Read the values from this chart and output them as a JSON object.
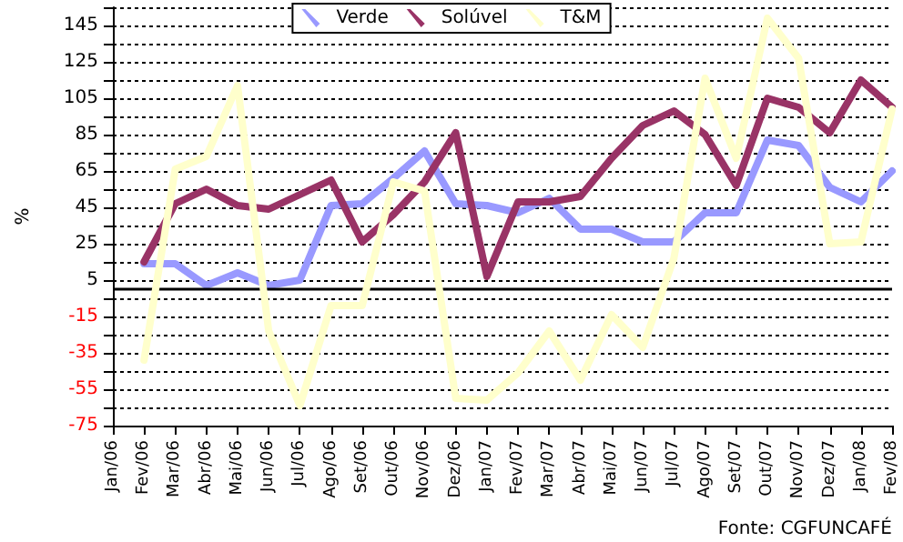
{
  "chart_data": {
    "type": "line",
    "ylabel": "%",
    "annotations": [
      "Fonte: CGFUNCAFÉ"
    ],
    "categories": [
      "Jan/06",
      "Fev/06",
      "Mar/06",
      "Abr/06",
      "Mai/06",
      "Jun/06",
      "Jul/06",
      "Ago/06",
      "Set/06",
      "Out/06",
      "Nov/06",
      "Dez/06",
      "Jan/07",
      "Fev/07",
      "Mar/07",
      "Abr/07",
      "Mai/07",
      "Jun/07",
      "Jul/07",
      "Ago/07",
      "Set/07",
      "Out/07",
      "Nov/07",
      "Dez/07",
      "Jan/08",
      "Fev/08"
    ],
    "series": [
      {
        "name": "Verde",
        "color": "#9999ff",
        "values": [
          null,
          14,
          14,
          2,
          9,
          2,
          5,
          46,
          47,
          61,
          76,
          47,
          46,
          42,
          50,
          33,
          33,
          26,
          26,
          42,
          42,
          82,
          79,
          56,
          48,
          65
        ]
      },
      {
        "name": "Solúvel",
        "color": "#993366",
        "values": [
          null,
          15,
          47,
          55,
          46,
          44,
          52,
          60,
          26,
          41,
          59,
          86,
          7,
          48,
          48,
          51,
          72,
          90,
          98,
          85,
          57,
          105,
          100,
          86,
          115,
          100
        ]
      },
      {
        "name": "T&M",
        "color": "#ffffcc",
        "values": [
          null,
          -39,
          66,
          73,
          112,
          -23,
          -64,
          -9,
          -9,
          59,
          54,
          -60,
          -61,
          -46,
          -23,
          -50,
          -14,
          -32,
          17,
          116,
          72,
          149,
          127,
          25,
          26,
          99
        ]
      }
    ],
    "ylim": [
      -75,
      155
    ],
    "yticks": [
      -75,
      {
        "value": -65,
        "label": null
      },
      -55,
      {
        "value": -45,
        "label": null
      },
      -35,
      {
        "value": -25,
        "label": null
      },
      -15,
      {
        "value": -5,
        "label": null
      },
      5,
      {
        "value": 15,
        "label": null
      },
      25,
      {
        "value": 35,
        "label": null
      },
      45,
      {
        "value": 55,
        "label": null
      },
      65,
      {
        "value": 75,
        "label": null
      },
      85,
      {
        "value": 95,
        "label": null
      },
      105,
      {
        "value": 115,
        "label": null
      },
      125,
      {
        "value": 135,
        "label": null
      },
      145,
      {
        "value": 155,
        "label": null
      }
    ],
    "ref_lines": [
      {
        "axis": "y",
        "value": 0,
        "color": "#000000",
        "line_style": "solid"
      }
    ],
    "grid": "y",
    "legend": "top",
    "marker": "none",
    "line_style": "solid"
  }
}
